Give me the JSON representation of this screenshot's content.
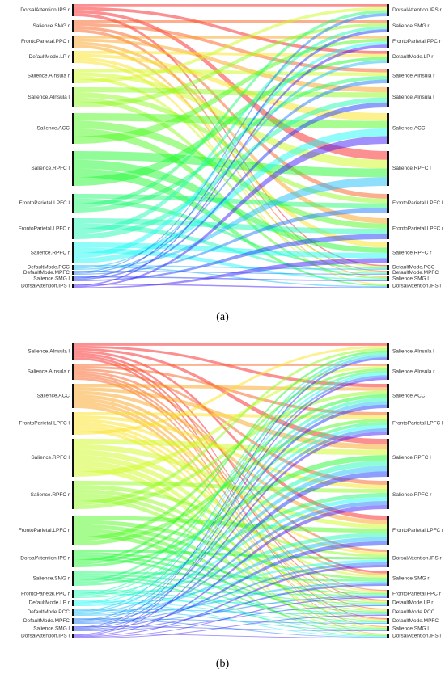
{
  "panels": [
    {
      "label": "(a)",
      "nodes_left": [
        "DorsalAttention.IPS r",
        "Salience.SMG r",
        "FrontoParietal.PPC r",
        "DefaultMode.LP r",
        "Salience.AInsula r",
        "Salience.AInsula l",
        "Salience.ACC",
        "Salience.RPFC l",
        "FrontoParietal.LPFC l",
        "FrontoParietal.LPFC r",
        "Salience.RPFC r",
        "DefaultMode.PCC",
        "DefaultMode.MPFC",
        "Salience.SMG l",
        "DorsalAttention.IPS l"
      ],
      "nodes_right": [
        "DorsalAttention.IPS r",
        "Salience.SMG r",
        "FrontoParietal.PPC r",
        "DefaultMode.LP r",
        "Salience.AInsula r",
        "Salience.AInsula l",
        "Salience.ACC",
        "Salience.RPFC l",
        "FrontoParietal.LPFC l",
        "FrontoParietal.LPFC r",
        "Salience.RPFC r",
        "DefaultMode.PCC",
        "DefaultMode.MPFC",
        "Salience.SMG l",
        "DorsalAttention.IPS l"
      ]
    },
    {
      "label": "(b)",
      "nodes_left": [
        "Salience.AInsula l",
        "Salience.AInsula r",
        "Salience.ACC",
        "FrontoParietal.LPFC l",
        "Salience.RPFC l",
        "Salience.RPFC r",
        "FrontoParietal.LPFC r",
        "DorsalAttention.IPS r",
        "Salience.SMG r",
        "FrontoParietal.PPC r",
        "DefaultMode.LP r",
        "DefaultMode.PCC",
        "DefaultMode.MPFC",
        "Salience.SMG l",
        "DorsalAttention.IPS l"
      ],
      "nodes_right": [
        "Salience.AInsula l",
        "Salience.AInsula r",
        "Salience.ACC",
        "FrontoParietal.LPFC l",
        "Salience.RPFC l",
        "Salience.RPFC r",
        "FrontoParietal.LPFC r",
        "DorsalAttention.IPS r",
        "Salience.SMG r",
        "FrontoParietal.PPC r",
        "DefaultMode.LP r",
        "DefaultMode.PCC",
        "DefaultMode.MPFC",
        "Salience.SMG l",
        "DorsalAttention.IPS l"
      ]
    }
  ]
}
